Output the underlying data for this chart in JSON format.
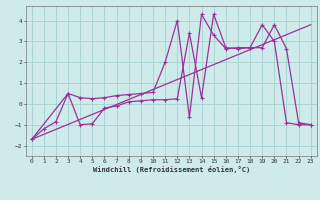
{
  "title": "",
  "xlabel": "Windchill (Refroidissement éolien,°C)",
  "background_color": "#ceeaea",
  "grid_color": "#aad4d4",
  "line_color": "#993399",
  "xlim": [
    -0.5,
    23.5
  ],
  "ylim": [
    -2.5,
    4.7
  ],
  "xticks": [
    0,
    1,
    2,
    3,
    4,
    5,
    6,
    7,
    8,
    9,
    10,
    11,
    12,
    13,
    14,
    15,
    16,
    17,
    18,
    19,
    20,
    21,
    22,
    23
  ],
  "yticks": [
    -2,
    -1,
    0,
    1,
    2,
    3,
    4
  ],
  "series1_x": [
    0,
    1,
    2,
    3,
    4,
    5,
    6,
    7,
    8,
    9,
    10,
    11,
    12,
    13,
    14,
    15,
    16,
    17,
    18,
    19,
    20,
    21,
    22,
    23
  ],
  "series1_y": [
    -1.7,
    -1.2,
    -0.85,
    0.5,
    0.3,
    0.25,
    0.3,
    0.4,
    0.45,
    0.5,
    0.55,
    2.0,
    4.0,
    -0.65,
    4.3,
    3.3,
    2.65,
    2.7,
    2.7,
    3.8,
    3.0,
    -0.9,
    -1.0,
    -1.0
  ],
  "series2_x": [
    0,
    3,
    4,
    5,
    6,
    7,
    8,
    9,
    10,
    11,
    12,
    13,
    14,
    15,
    16,
    17,
    18,
    19,
    20,
    21,
    22,
    23
  ],
  "series2_y": [
    -1.7,
    0.5,
    -1.0,
    -0.95,
    -0.2,
    -0.1,
    0.1,
    0.15,
    0.2,
    0.2,
    0.25,
    3.4,
    0.3,
    4.3,
    2.7,
    2.65,
    2.7,
    2.7,
    3.8,
    2.65,
    -0.9,
    -1.0
  ],
  "series3_x": [
    0,
    23
  ],
  "series3_y": [
    -1.7,
    3.8
  ],
  "figsize": [
    3.2,
    2.0
  ],
  "dpi": 100
}
